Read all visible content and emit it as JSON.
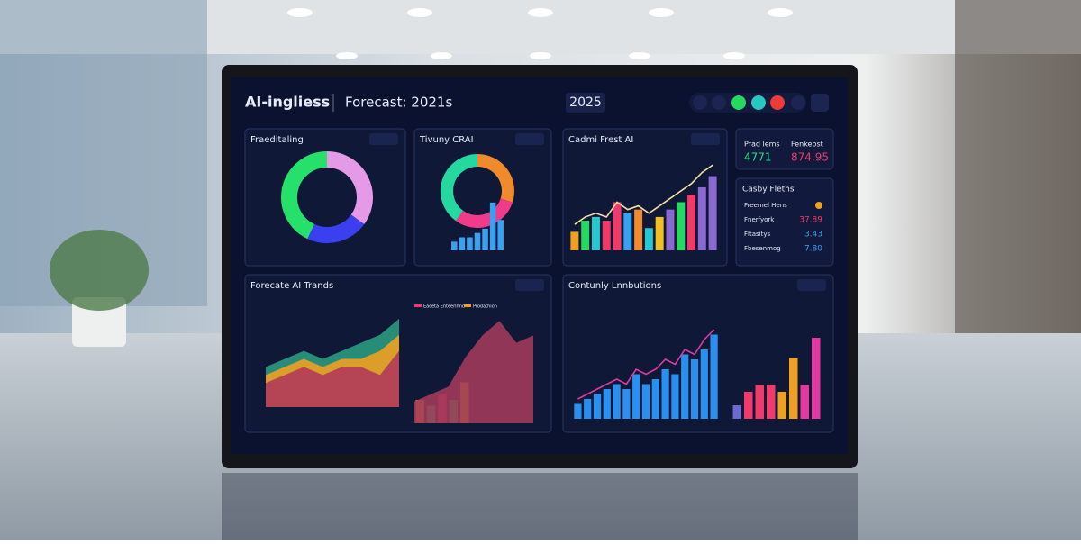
{
  "header": {
    "title": "AI-ingliess",
    "subtitle": "Forecast: 2021s",
    "year": "2025"
  },
  "kpi": {
    "labels": [
      "Prad lems",
      "Fenkebst"
    ],
    "values": [
      "4771",
      "874.95"
    ]
  },
  "list": {
    "title": "Casby Fleths",
    "rows": [
      {
        "label": "Freemel Hens"
      },
      {
        "label": "Fnerfyork",
        "value": "37.89"
      },
      {
        "label": "Fltasitys",
        "value": "3.43"
      },
      {
        "label": "Fbesenmog",
        "value": "7.80"
      }
    ]
  },
  "panels": [
    {
      "title": "Fraeditaling",
      "charts": [
        {
          "type": "donut",
          "values": [
            35,
            22,
            43
          ],
          "colors": [
            "#e49ae6",
            "#3a3ff0",
            "#25e06a"
          ]
        }
      ]
    },
    {
      "title": "Tivuny CRAI",
      "charts": [
        {
          "type": "donut",
          "values": [
            30,
            30,
            40
          ],
          "colors": [
            "#f08a2a",
            "#f03a8a",
            "#25d8a0"
          ]
        },
        {
          "type": "bar",
          "ylim": [
            0,
            12
          ],
          "values": [
            2,
            3,
            3,
            4,
            5,
            11,
            7
          ],
          "colors": [
            "#3aa0f0",
            "#3aa0f0",
            "#3aa0f0",
            "#3aa0f0",
            "#3aa0f0",
            "#3aa0f0",
            "#3aa0f0"
          ]
        }
      ]
    },
    {
      "title": "Cadmi Frest AI",
      "charts": [
        {
          "type": "bar",
          "ylim": [
            0,
            25
          ],
          "values": [
            5,
            8,
            9,
            8,
            13,
            10,
            11,
            6,
            9,
            11,
            13,
            15,
            17,
            20
          ],
          "colors": [
            "#f0a020",
            "#25d860",
            "#25c8d0",
            "#f03a6a",
            "#f03a6a",
            "#3aa0f0",
            "#f08a2a",
            "#25c8d0",
            "#f0c020",
            "#8a6ad0",
            "#25d860",
            "#f03a6a",
            "#8a6ad0",
            "#8a6ad0"
          ]
        },
        {
          "type": "line",
          "ylim": [
            0,
            25
          ],
          "values": [
            7,
            9,
            10,
            9,
            13,
            11,
            12,
            10,
            12,
            14,
            16,
            18,
            21,
            23
          ],
          "color": "#f0e0a0"
        }
      ]
    },
    {
      "title": "Forecate AI Trands",
      "legend": [
        "Eaceta Enteerlnnd",
        "Prodathion"
      ],
      "legend_colors": [
        "#f03a6a",
        "#f0a020"
      ],
      "charts": [
        {
          "type": "area",
          "ylim": [
            0,
            12
          ],
          "series": [
            {
              "values": [
                5,
                6,
                7,
                6,
                7,
                8,
                9,
                11
              ],
              "color": "#2a9a80"
            },
            {
              "values": [
                4,
                5,
                6,
                5,
                6,
                6,
                7,
                9
              ],
              "color": "#f0a020"
            },
            {
              "values": [
                3,
                4,
                5,
                4,
                5,
                5,
                4,
                7
              ],
              "color": "#b03a5a"
            }
          ]
        },
        {
          "type": "bar",
          "ylim": [
            0,
            10
          ],
          "values": [
            4,
            3,
            5,
            4,
            7
          ],
          "colors": [
            "#f0a020",
            "#25d860",
            "#f03a6a",
            "#25d860",
            "#f0c020"
          ]
        },
        {
          "type": "area",
          "ylim": [
            0,
            16
          ],
          "series": [
            {
              "values": [
                3,
                4,
                5,
                9,
                12,
                14,
                11,
                12
              ],
              "color": "#a03a5a"
            }
          ]
        }
      ]
    },
    {
      "title": "Contunly Lnnbutions",
      "charts": [
        {
          "type": "bar",
          "ylim": [
            0,
            20
          ],
          "values": [
            3,
            4,
            5,
            6,
            7,
            6,
            9,
            7,
            8,
            10,
            9,
            13,
            12,
            14,
            17
          ],
          "colors": [
            "#2a90f0",
            "#2a90f0",
            "#2a90f0",
            "#2a90f0",
            "#2a90f0",
            "#2a90f0",
            "#2a90f0",
            "#2a90f0",
            "#2a90f0",
            "#2a90f0",
            "#2a90f0",
            "#2a90f0",
            "#2a90f0",
            "#2a90f0",
            "#2a90f0"
          ]
        },
        {
          "type": "line",
          "ylim": [
            0,
            20
          ],
          "values": [
            4,
            5,
            6,
            7,
            8,
            7,
            10,
            9,
            10,
            12,
            11,
            14,
            13,
            16,
            18
          ],
          "color": "#e03aa0"
        },
        {
          "type": "bar",
          "ylim": [
            0,
            14
          ],
          "values": [
            2,
            4,
            5,
            5,
            4,
            9,
            5,
            12
          ],
          "colors": [
            "#6a6ad0",
            "#f03a6a",
            "#f03a6a",
            "#f03a6a",
            "#f0a020",
            "#f0a020",
            "#e03aa0",
            "#e03aa0"
          ]
        }
      ]
    }
  ]
}
